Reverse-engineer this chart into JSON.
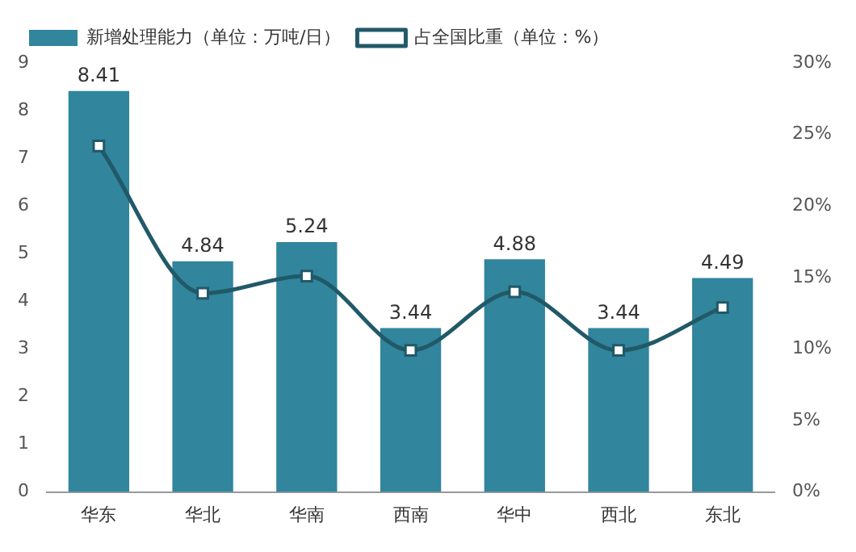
{
  "chart_data": {
    "type": "bar",
    "categories": [
      "华东",
      "华北",
      "华南",
      "西南",
      "华中",
      "西北",
      "东北"
    ],
    "series": [
      {
        "name": "新增处理能力（单位：万吨/日）",
        "color": "#31859c",
        "values": [
          8.41,
          4.84,
          5.24,
          3.44,
          4.88,
          3.44,
          4.49
        ]
      },
      {
        "name": "占全国比重（单位：%）",
        "type": "line",
        "axis": "y2",
        "color": "#215968",
        "values": [
          24.2,
          13.9,
          15.1,
          9.9,
          14.0,
          9.9,
          12.9
        ]
      }
    ],
    "ylim": [
      0,
      9
    ],
    "yticks": [
      0,
      1,
      2,
      3,
      4,
      5,
      6,
      7,
      8,
      9
    ],
    "y2lim": [
      0,
      30
    ],
    "y2ticks": [
      {
        "value": 0,
        "label": "0%"
      },
      {
        "value": 5,
        "label": "5%"
      },
      {
        "value": 10,
        "label": "10%"
      },
      {
        "value": 15,
        "label": "15%"
      },
      {
        "value": 20,
        "label": "20%"
      },
      {
        "value": 25,
        "label": "25%"
      },
      {
        "value": 30,
        "label": "30%"
      }
    ],
    "value_labels": [
      "8.41",
      "4.84",
      "5.24",
      "3.44",
      "4.88",
      "3.44",
      "4.49"
    ],
    "marker": "square",
    "legend": "top",
    "grid": false
  }
}
